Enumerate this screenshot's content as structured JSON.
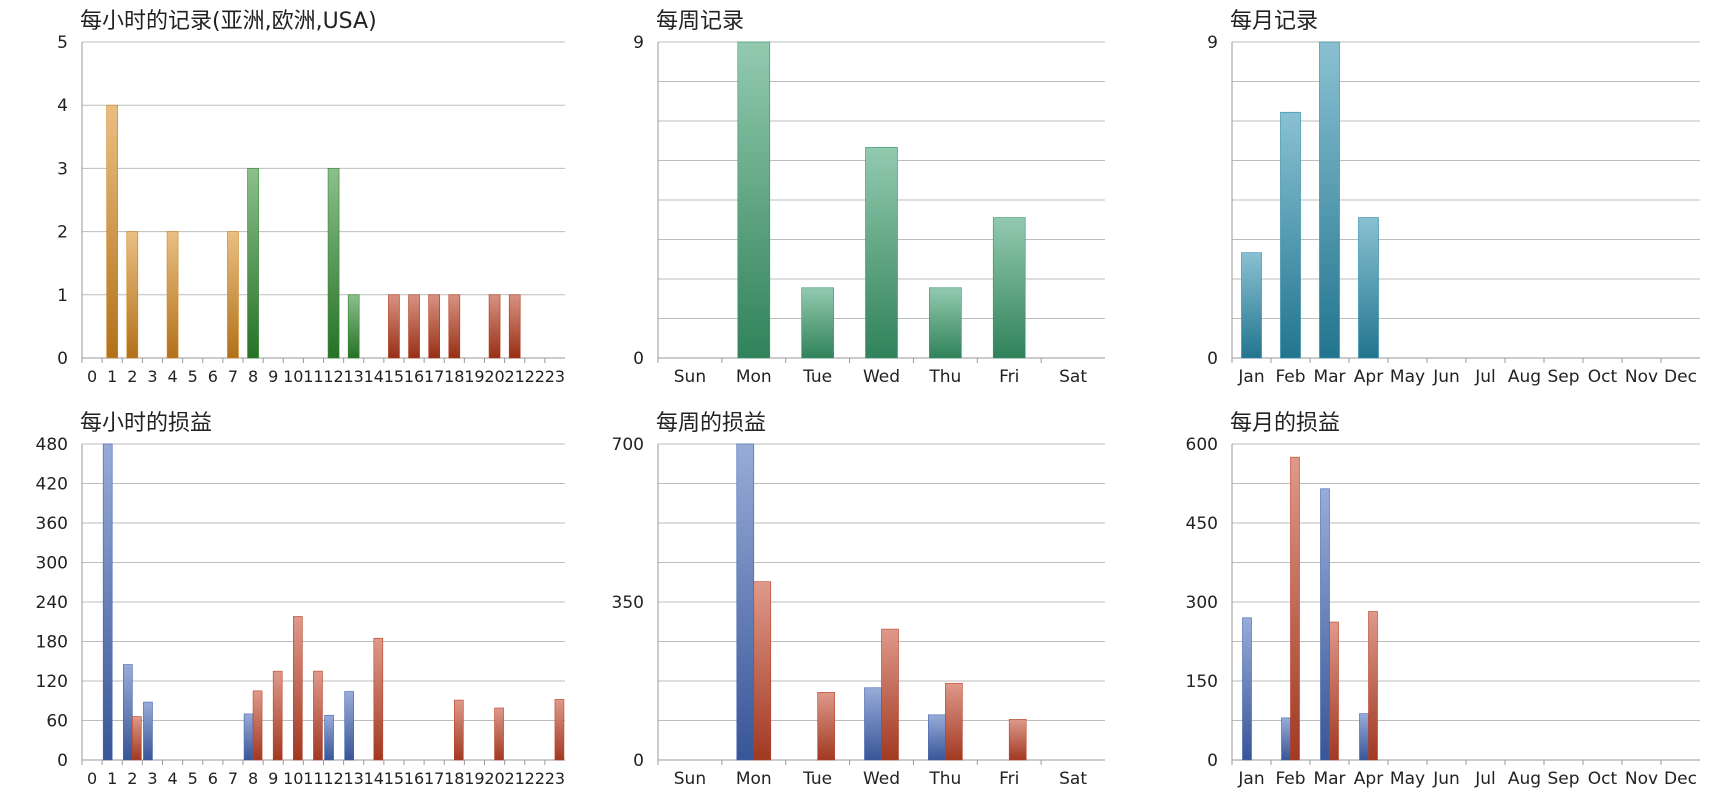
{
  "chart_data": [
    {
      "type": "bar",
      "title": "每小时的记录(亚洲,欧洲,USA)",
      "categories": [
        "0",
        "1",
        "2",
        "3",
        "4",
        "5",
        "6",
        "7",
        "8",
        "9",
        "10",
        "11",
        "12",
        "13",
        "14",
        "15",
        "16",
        "17",
        "18",
        "19",
        "20",
        "21",
        "22",
        "23"
      ],
      "y_ticks": [
        "0",
        "1",
        "2",
        "3",
        "4",
        "5"
      ],
      "ylim": [
        0,
        5
      ],
      "series": [
        {
          "color_role": "asia",
          "values": [
            0,
            4,
            2,
            0,
            2,
            0,
            0,
            2,
            0,
            0,
            0,
            0,
            0,
            0,
            0,
            0,
            0,
            0,
            0,
            0,
            0,
            0,
            0,
            0
          ]
        },
        {
          "color_role": "europe",
          "values": [
            0,
            0,
            0,
            0,
            0,
            0,
            0,
            0,
            3,
            0,
            0,
            0,
            3,
            1,
            0,
            0,
            0,
            0,
            0,
            0,
            0,
            0,
            0,
            0
          ]
        },
        {
          "color_role": "usa",
          "values": [
            0,
            0,
            0,
            0,
            0,
            0,
            0,
            0,
            0,
            0,
            0,
            0,
            0,
            0,
            0,
            1,
            1,
            1,
            1,
            0,
            1,
            1,
            0,
            0
          ]
        }
      ],
      "grid": true
    },
    {
      "type": "bar",
      "title": "每周记录",
      "categories": [
        "Sun",
        "Mon",
        "Tue",
        "Wed",
        "Thu",
        "Fri",
        "Sat"
      ],
      "y_ticks": [
        "0",
        "9"
      ],
      "ylim": [
        0,
        9
      ],
      "series": [
        {
          "color_role": "green",
          "values": [
            0,
            9,
            2,
            6,
            2,
            4,
            0
          ]
        }
      ],
      "grid": true
    },
    {
      "type": "bar",
      "title": "每月记录",
      "categories": [
        "Jan",
        "Feb",
        "Mar",
        "Apr",
        "May",
        "Jun",
        "Jul",
        "Aug",
        "Sep",
        "Oct",
        "Nov",
        "Dec"
      ],
      "y_ticks": [
        "0",
        "9"
      ],
      "ylim": [
        0,
        9
      ],
      "series": [
        {
          "color_role": "teal",
          "values": [
            3,
            7,
            9,
            4,
            0,
            0,
            0,
            0,
            0,
            0,
            0,
            0
          ]
        }
      ],
      "grid": true
    },
    {
      "type": "bar",
      "title": "每小时的损益",
      "categories": [
        "0",
        "1",
        "2",
        "3",
        "4",
        "5",
        "6",
        "7",
        "8",
        "9",
        "10",
        "11",
        "12",
        "13",
        "14",
        "15",
        "16",
        "17",
        "18",
        "19",
        "20",
        "21",
        "22",
        "23"
      ],
      "y_ticks": [
        "0",
        "60",
        "120",
        "180",
        "240",
        "300",
        "360",
        "420",
        "480"
      ],
      "ylim": [
        0,
        480
      ],
      "series": [
        {
          "color_role": "blue",
          "values": [
            0,
            480,
            145,
            88,
            0,
            0,
            0,
            0,
            70,
            0,
            0,
            0,
            68,
            104,
            0,
            0,
            0,
            0,
            0,
            0,
            0,
            0,
            0,
            0
          ]
        },
        {
          "color_role": "red",
          "values": [
            0,
            0,
            66,
            0,
            0,
            0,
            0,
            0,
            105,
            135,
            218,
            135,
            0,
            0,
            185,
            0,
            0,
            0,
            91,
            0,
            79,
            0,
            0,
            92
          ]
        }
      ],
      "grid": true
    },
    {
      "type": "bar",
      "title": "每周的损益",
      "categories": [
        "Sun",
        "Mon",
        "Tue",
        "Wed",
        "Thu",
        "Fri",
        "Sat"
      ],
      "y_ticks": [
        "0",
        "350",
        "700"
      ],
      "ylim": [
        0,
        700
      ],
      "series": [
        {
          "color_role": "blue",
          "values": [
            0,
            700,
            0,
            160,
            100,
            0,
            0
          ]
        },
        {
          "color_role": "red",
          "values": [
            0,
            395,
            150,
            290,
            170,
            90,
            0
          ]
        }
      ],
      "grid": true
    },
    {
      "type": "bar",
      "title": "每月的损益",
      "categories": [
        "Jan",
        "Feb",
        "Mar",
        "Apr",
        "May",
        "Jun",
        "Jul",
        "Aug",
        "Sep",
        "Oct",
        "Nov",
        "Dec"
      ],
      "y_ticks": [
        "0",
        "150",
        "300",
        "450",
        "600"
      ],
      "ylim": [
        0,
        600
      ],
      "series": [
        {
          "color_role": "blue",
          "values": [
            270,
            80,
            515,
            88,
            0,
            0,
            0,
            0,
            0,
            0,
            0,
            0
          ]
        },
        {
          "color_role": "red",
          "values": [
            0,
            575,
            262,
            282,
            0,
            0,
            0,
            0,
            0,
            0,
            0,
            0
          ]
        }
      ],
      "grid": true
    }
  ],
  "colors": {
    "asia": "#d98a1e",
    "europe": "#2e8b2e",
    "usa": "#b8391a",
    "green": "#3a9e6e",
    "teal": "#2a8fae",
    "blue": "#4468b8",
    "red": "#c4452a",
    "grid": "#bdbdbd",
    "axis": "#9a9a9a"
  }
}
